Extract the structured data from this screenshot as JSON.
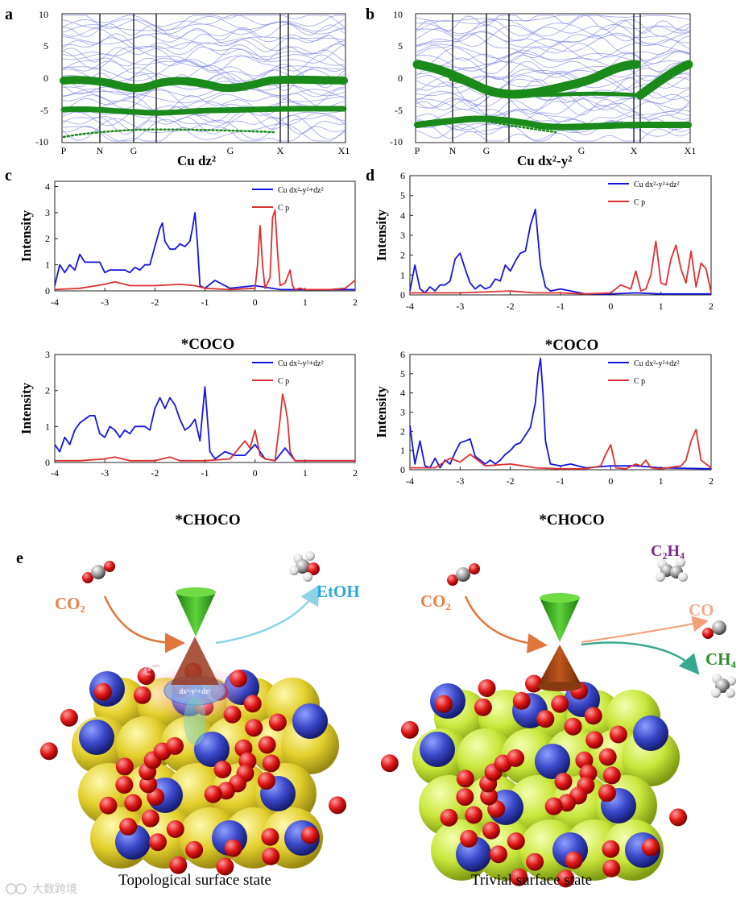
{
  "panels": {
    "a": {
      "label": "a",
      "title": "Cu dz²"
    },
    "b": {
      "label": "b",
      "title": "Cu dx²-y²"
    },
    "c": {
      "label": "c"
    },
    "d": {
      "label": "d"
    },
    "e": {
      "label": "e"
    }
  },
  "band_axis": {
    "y_ticks": [
      "10",
      "5",
      "0",
      "-5",
      "-10"
    ],
    "k_labels": [
      "P",
      "N",
      "G",
      "G",
      "X",
      "X1"
    ]
  },
  "legend": {
    "cu": "Cu dx²-y²+dz²",
    "cp": "C p"
  },
  "colors": {
    "cu": "#1515e0",
    "cp": "#e03030",
    "band": "#8b93e8",
    "weight": "#1a8a1a"
  },
  "chart_data": [
    {
      "id": "band-a",
      "type": "line",
      "title": "Cu dz²",
      "ylim": [
        -10,
        10
      ],
      "yticks": [
        10,
        5,
        0,
        -5,
        -10
      ],
      "xlabels": [
        "P",
        "N",
        "G",
        "G",
        "X",
        "X1"
      ],
      "highlighted_bands": [
        {
          "name": "dz² band near 0 eV",
          "values": [
            -0.3,
            -0.5,
            -1.2,
            -1.5,
            -1.0,
            -0.5,
            -1.5,
            -1.2,
            -0.5,
            -0.3
          ]
        },
        {
          "name": "dz² band near -5 eV",
          "values": [
            -4.6,
            -4.6,
            -4.7,
            -5.0,
            -4.7,
            -4.6,
            -4.8,
            -4.6,
            -4.5,
            -4.5
          ]
        }
      ]
    },
    {
      "id": "band-b",
      "type": "line",
      "title": "Cu dx²-y²",
      "ylim": [
        -10,
        10
      ],
      "yticks": [
        10,
        5,
        0,
        -5,
        -10
      ],
      "xlabels": [
        "P",
        "N",
        "G",
        "G",
        "X",
        "X1"
      ],
      "highlighted_bands": [
        {
          "name": "dx²-y² upper band",
          "values": [
            2.3,
            1.0,
            -1.0,
            -2.5,
            -2.2,
            -2.0,
            -1.5,
            1.0,
            2.2,
            -2.5,
            2.3
          ]
        },
        {
          "name": "dx²-y² lower band",
          "values": [
            -7.2,
            -6.5,
            -6.0,
            -7.0,
            -8.0,
            -7.0,
            -7.2,
            -7.2
          ]
        }
      ]
    },
    {
      "id": "pdos-c-coco",
      "type": "line",
      "title": "*COCO",
      "xlabel": "",
      "ylabel": "Intensity",
      "xlim": [
        -4,
        2
      ],
      "ylim": [
        0,
        4.2
      ],
      "yticks": [
        0,
        1,
        2,
        3,
        4
      ],
      "series": [
        {
          "name": "Cu dx²-y²+dz²",
          "x": [
            -4.0,
            -3.9,
            -3.8,
            -3.7,
            -3.6,
            -3.5,
            -3.4,
            -3.3,
            -3.2,
            -3.1,
            -3.0,
            -2.9,
            -2.8,
            -2.7,
            -2.6,
            -2.5,
            -2.4,
            -2.3,
            -2.2,
            -2.1,
            -2.0,
            -1.9,
            -1.85,
            -1.8,
            -1.7,
            -1.6,
            -1.5,
            -1.4,
            -1.3,
            -1.25,
            -1.2,
            -1.15,
            -1.1,
            -1.0,
            -0.8,
            -0.5,
            0.0,
            0.5,
            1.0,
            2.0
          ],
          "y": [
            0.2,
            1.0,
            0.7,
            1.0,
            0.8,
            1.4,
            1.1,
            1.1,
            1.1,
            1.1,
            0.7,
            0.8,
            0.8,
            0.8,
            0.8,
            0.7,
            0.9,
            0.8,
            1.0,
            1.0,
            1.7,
            2.4,
            2.6,
            1.9,
            1.6,
            1.6,
            1.8,
            1.7,
            1.9,
            2.4,
            3.0,
            1.8,
            0.2,
            0.1,
            0.4,
            0.1,
            0.2,
            0.05,
            0.05,
            0.05
          ]
        },
        {
          "name": "C p",
          "x": [
            -4.0,
            -3.5,
            -3.0,
            -2.8,
            -2.5,
            -2.0,
            -1.5,
            -1.2,
            -1.0,
            -0.5,
            0.0,
            0.05,
            0.1,
            0.15,
            0.2,
            0.3,
            0.35,
            0.4,
            0.45,
            0.5,
            0.6,
            0.7,
            0.75,
            0.8,
            0.9,
            1.0,
            1.5,
            1.8,
            2.0
          ],
          "y": [
            0.05,
            0.1,
            0.25,
            0.35,
            0.2,
            0.2,
            0.25,
            0.2,
            0.1,
            0.05,
            0.1,
            1.0,
            2.5,
            1.0,
            0.1,
            0.5,
            2.8,
            3.1,
            1.5,
            0.2,
            0.3,
            0.8,
            0.2,
            0.05,
            0.1,
            0.05,
            0.05,
            0.1,
            0.4
          ]
        }
      ]
    },
    {
      "id": "pdos-c-choco",
      "type": "line",
      "title": "*CHOCO",
      "xlabel": "",
      "ylabel": "Intensity",
      "xlim": [
        -4,
        2
      ],
      "ylim": [
        0,
        3
      ],
      "yticks": [
        0,
        1,
        2,
        3
      ],
      "series": [
        {
          "name": "Cu dx²-y²+dz²",
          "x": [
            -4.0,
            -3.9,
            -3.8,
            -3.7,
            -3.6,
            -3.5,
            -3.4,
            -3.3,
            -3.2,
            -3.1,
            -3.0,
            -2.9,
            -2.8,
            -2.7,
            -2.6,
            -2.5,
            -2.4,
            -2.3,
            -2.2,
            -2.1,
            -2.0,
            -1.9,
            -1.8,
            -1.7,
            -1.6,
            -1.5,
            -1.4,
            -1.3,
            -1.2,
            -1.1,
            -1.0,
            -0.9,
            -0.8,
            -0.6,
            -0.4,
            -0.2,
            0.0,
            0.2,
            0.4,
            0.6,
            0.8,
            1.0,
            2.0
          ],
          "y": [
            0.5,
            0.3,
            0.7,
            0.5,
            0.9,
            1.1,
            1.2,
            1.3,
            1.3,
            0.8,
            0.7,
            1.0,
            0.9,
            0.7,
            0.9,
            0.8,
            1.0,
            1.0,
            1.0,
            0.9,
            1.5,
            1.8,
            1.5,
            1.8,
            1.6,
            1.2,
            0.9,
            1.0,
            1.2,
            0.6,
            2.1,
            0.3,
            0.1,
            0.3,
            0.2,
            0.2,
            0.5,
            0.1,
            0.05,
            0.4,
            0.05,
            0.05,
            0.05
          ]
        },
        {
          "name": "C p",
          "x": [
            -4.0,
            -3.5,
            -3.0,
            -2.8,
            -2.5,
            -2.0,
            -1.7,
            -1.5,
            -1.0,
            -0.5,
            -0.2,
            -0.1,
            0.0,
            0.1,
            0.2,
            0.4,
            0.5,
            0.55,
            0.6,
            0.65,
            0.7,
            0.8,
            1.0,
            2.0
          ],
          "y": [
            0.05,
            0.05,
            0.1,
            0.15,
            0.05,
            0.05,
            0.15,
            0.05,
            0.05,
            0.1,
            0.6,
            0.4,
            0.9,
            0.2,
            0.1,
            0.05,
            1.2,
            1.9,
            1.6,
            1.2,
            0.3,
            0.05,
            0.05,
            0.05
          ]
        }
      ]
    },
    {
      "id": "pdos-d-coco",
      "type": "line",
      "title": "*COCO",
      "xlabel": "",
      "ylabel": "Intensity",
      "xlim": [
        -4,
        2
      ],
      "ylim": [
        0,
        6
      ],
      "yticks": [
        0,
        1,
        2,
        3,
        4,
        5,
        6
      ],
      "series": [
        {
          "name": "Cu dx²-y²+dz²",
          "x": [
            -4.0,
            -3.9,
            -3.8,
            -3.7,
            -3.6,
            -3.5,
            -3.4,
            -3.3,
            -3.2,
            -3.1,
            -3.0,
            -2.9,
            -2.8,
            -2.7,
            -2.6,
            -2.5,
            -2.4,
            -2.3,
            -2.2,
            -2.1,
            -2.0,
            -1.9,
            -1.8,
            -1.7,
            -1.6,
            -1.5,
            -1.4,
            -1.3,
            -1.2,
            -1.0,
            -0.8,
            -0.5,
            0.0,
            0.5,
            1.0,
            2.0
          ],
          "y": [
            0.2,
            1.5,
            0.3,
            0.1,
            0.4,
            0.2,
            0.5,
            0.5,
            0.7,
            1.8,
            2.1,
            1.3,
            0.6,
            0.3,
            0.5,
            0.3,
            0.4,
            0.8,
            0.7,
            1.5,
            1.2,
            1.7,
            2.1,
            2.2,
            3.5,
            4.3,
            1.5,
            0.4,
            0.2,
            0.3,
            0.2,
            0.05,
            0.05,
            0.1,
            0.05,
            0.05
          ]
        },
        {
          "name": "C p",
          "x": [
            -4.0,
            -3.0,
            -2.0,
            -1.5,
            -1.0,
            -0.5,
            0.0,
            0.2,
            0.4,
            0.5,
            0.6,
            0.7,
            0.8,
            0.9,
            1.0,
            1.1,
            1.2,
            1.3,
            1.4,
            1.5,
            1.6,
            1.7,
            1.8,
            1.9,
            2.0
          ],
          "y": [
            0.1,
            0.1,
            0.2,
            0.1,
            0.1,
            0.05,
            0.1,
            0.5,
            0.3,
            1.2,
            0.2,
            0.3,
            1.0,
            2.7,
            0.6,
            0.5,
            1.8,
            2.5,
            1.3,
            0.6,
            2.2,
            0.4,
            1.6,
            1.3,
            0.1
          ]
        }
      ]
    },
    {
      "id": "pdos-d-choco",
      "type": "line",
      "title": "*CHOCO",
      "xlabel": "",
      "ylabel": "Intensity",
      "xlim": [
        -4,
        2
      ],
      "ylim": [
        0,
        6
      ],
      "yticks": [
        0,
        1,
        2,
        3,
        4,
        5,
        6
      ],
      "series": [
        {
          "name": "Cu dx²-y²+dz²",
          "x": [
            -4.0,
            -3.9,
            -3.8,
            -3.7,
            -3.6,
            -3.5,
            -3.4,
            -3.3,
            -3.2,
            -3.1,
            -3.0,
            -2.9,
            -2.8,
            -2.7,
            -2.6,
            -2.5,
            -2.4,
            -2.3,
            -2.2,
            -2.1,
            -2.0,
            -1.9,
            -1.8,
            -1.7,
            -1.6,
            -1.5,
            -1.45,
            -1.4,
            -1.35,
            -1.3,
            -1.2,
            -1.0,
            -0.8,
            -0.5,
            0.0,
            0.5,
            1.0,
            2.0
          ],
          "y": [
            2.3,
            0.3,
            1.5,
            0.2,
            0.1,
            0.6,
            0.1,
            0.5,
            0.3,
            0.9,
            1.4,
            1.5,
            1.6,
            0.7,
            0.5,
            0.3,
            0.5,
            0.3,
            0.5,
            0.8,
            1.0,
            1.3,
            1.4,
            1.8,
            2.2,
            3.5,
            5.0,
            5.8,
            4.0,
            1.5,
            0.3,
            0.2,
            0.3,
            0.1,
            0.2,
            0.2,
            0.1,
            0.05
          ]
        },
        {
          "name": "C p",
          "x": [
            -4.0,
            -3.5,
            -3.2,
            -3.0,
            -2.8,
            -2.5,
            -2.0,
            -1.5,
            -1.0,
            -0.5,
            -0.2,
            -0.1,
            0.0,
            0.1,
            0.3,
            0.5,
            0.6,
            0.7,
            0.8,
            1.0,
            1.4,
            1.5,
            1.6,
            1.7,
            1.8,
            2.0
          ],
          "y": [
            0.1,
            0.1,
            0.6,
            0.4,
            0.8,
            0.2,
            0.3,
            0.1,
            0.05,
            0.05,
            0.2,
            0.8,
            1.3,
            0.1,
            0.05,
            0.3,
            0.2,
            0.5,
            0.1,
            0.05,
            0.2,
            0.5,
            1.5,
            2.1,
            0.5,
            0.1
          ]
        }
      ]
    }
  ],
  "scene": {
    "left": {
      "co2": "CO₂",
      "electron": "e⁻",
      "orbital": "dx²-y²+dz²",
      "product": "EtOH",
      "caption": "Topological surface state"
    },
    "right": {
      "co2": "CO₂",
      "c2h4": "C₂H₄",
      "co": "CO",
      "ch4": "CH₄",
      "caption": "Trivial surface state"
    }
  },
  "watermark": "大数跨境"
}
